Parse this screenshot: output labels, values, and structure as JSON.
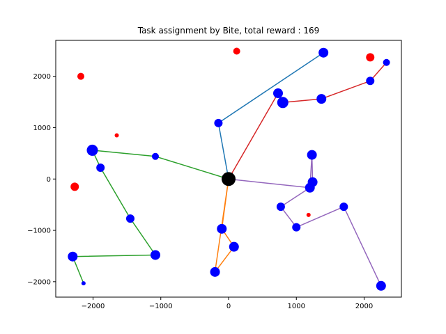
{
  "chart_data": {
    "type": "scatter",
    "title": "Task assignment by Bite, total reward : 169",
    "xlim": [
      -2550,
      2550
    ],
    "ylim": [
      -2300,
      2700
    ],
    "xticks": [
      -2000,
      -1000,
      0,
      1000,
      2000
    ],
    "yticks": [
      -2000,
      -1000,
      0,
      1000,
      2000
    ],
    "grid": false,
    "depot": {
      "x": 0,
      "y": 0,
      "color": "#000000"
    },
    "routes": [
      {
        "color": "#1f77b4",
        "points": [
          [
            0,
            0
          ],
          [
            -150,
            1090
          ],
          [
            1400,
            2460
          ]
        ]
      },
      {
        "color": "#d62728",
        "points": [
          [
            0,
            0
          ],
          [
            730,
            1670
          ],
          [
            800,
            1490
          ],
          [
            1370,
            1560
          ],
          [
            2090,
            1910
          ],
          [
            2330,
            2270
          ]
        ]
      },
      {
        "color": "#2ca02c",
        "points": [
          [
            0,
            0
          ],
          [
            -1080,
            440
          ],
          [
            -2010,
            560
          ],
          [
            -1890,
            220
          ],
          [
            -1450,
            -770
          ],
          [
            -1080,
            -1480
          ],
          [
            -2300,
            -1510
          ],
          [
            -2140,
            -2030
          ]
        ]
      },
      {
        "color": "#ff7f0e",
        "points": [
          [
            0,
            0
          ],
          [
            -100,
            -970
          ],
          [
            80,
            -1320
          ],
          [
            -200,
            -1810
          ],
          [
            0,
            0
          ]
        ]
      },
      {
        "color": "#9467bd",
        "points": [
          [
            0,
            0
          ],
          [
            1200,
            -170
          ],
          [
            1240,
            -60
          ],
          [
            1230,
            470
          ],
          [
            1200,
            -170
          ],
          [
            770,
            -540
          ],
          [
            1000,
            -940
          ],
          [
            1700,
            -540
          ],
          [
            2250,
            -2080
          ]
        ]
      }
    ],
    "assigned_tasks": {
      "color": "#0000ff",
      "points": [
        {
          "x": -150,
          "y": 1090,
          "size": 6
        },
        {
          "x": 1400,
          "y": 2460,
          "size": 7
        },
        {
          "x": 730,
          "y": 1670,
          "size": 7
        },
        {
          "x": 800,
          "y": 1490,
          "size": 8
        },
        {
          "x": 1370,
          "y": 1560,
          "size": 7
        },
        {
          "x": 2090,
          "y": 1910,
          "size": 6
        },
        {
          "x": 2330,
          "y": 2270,
          "size": 5
        },
        {
          "x": -1080,
          "y": 440,
          "size": 5
        },
        {
          "x": -2010,
          "y": 560,
          "size": 8
        },
        {
          "x": -1890,
          "y": 220,
          "size": 6
        },
        {
          "x": -1450,
          "y": -770,
          "size": 6
        },
        {
          "x": -1080,
          "y": -1480,
          "size": 7
        },
        {
          "x": -2300,
          "y": -1510,
          "size": 7
        },
        {
          "x": -2140,
          "y": -2030,
          "size": 3
        },
        {
          "x": -100,
          "y": -970,
          "size": 7
        },
        {
          "x": 80,
          "y": -1320,
          "size": 7
        },
        {
          "x": -200,
          "y": -1810,
          "size": 7
        },
        {
          "x": 1230,
          "y": 470,
          "size": 7
        },
        {
          "x": 1240,
          "y": -60,
          "size": 7
        },
        {
          "x": 1200,
          "y": -170,
          "size": 7
        },
        {
          "x": 770,
          "y": -540,
          "size": 6
        },
        {
          "x": 1000,
          "y": -940,
          "size": 6
        },
        {
          "x": 1700,
          "y": -540,
          "size": 6
        },
        {
          "x": 2250,
          "y": -2080,
          "size": 7
        }
      ]
    },
    "unassigned_tasks": {
      "color": "#ff0000",
      "points": [
        {
          "x": 120,
          "y": 2490,
          "size": 5
        },
        {
          "x": -2180,
          "y": 2000,
          "size": 5
        },
        {
          "x": 2090,
          "y": 2370,
          "size": 6
        },
        {
          "x": -1650,
          "y": 850,
          "size": 3
        },
        {
          "x": -2270,
          "y": -150,
          "size": 6
        },
        {
          "x": 1180,
          "y": -700,
          "size": 3
        }
      ]
    }
  }
}
